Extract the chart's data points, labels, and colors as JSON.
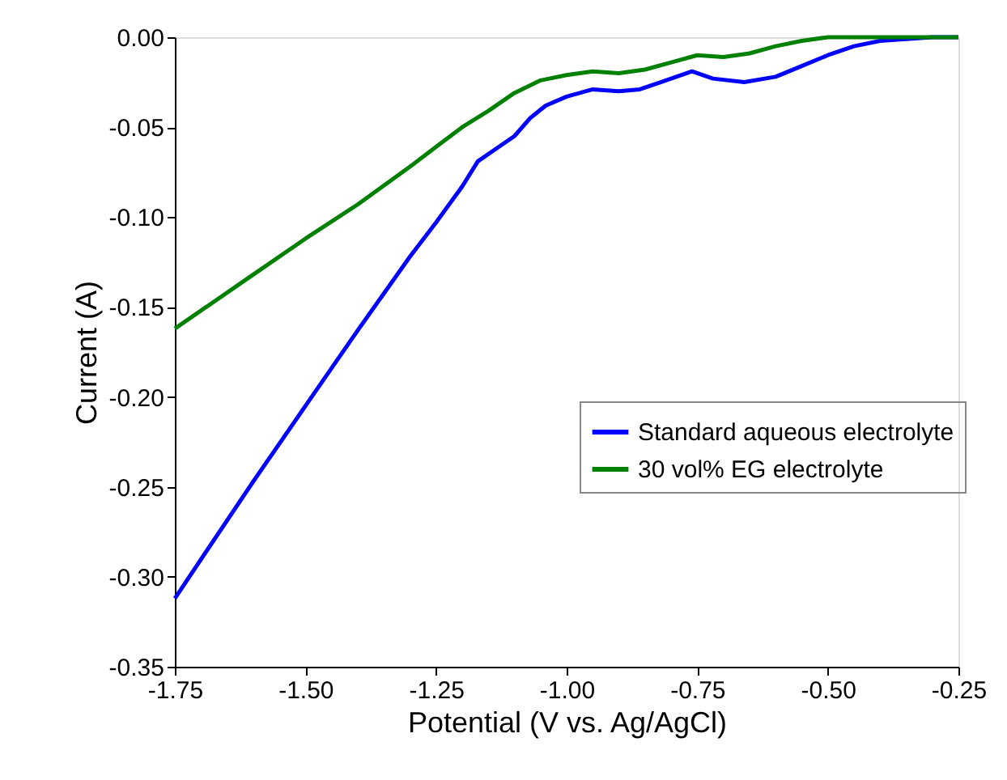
{
  "chart_data": {
    "type": "line",
    "xlabel": "Potential (V vs. Ag/AgCl)",
    "ylabel": "Current (A)",
    "xlim": [
      -1.75,
      -0.25
    ],
    "ylim": [
      -0.35,
      0.0
    ],
    "xticks": [
      {
        "value": -1.75,
        "label": "-1.75"
      },
      {
        "value": -1.5,
        "label": "-1.50"
      },
      {
        "value": -1.25,
        "label": "-1.25"
      },
      {
        "value": -1.0,
        "label": "-1.00"
      },
      {
        "value": -0.75,
        "label": "-0.75"
      },
      {
        "value": -0.5,
        "label": "-0.50"
      },
      {
        "value": -0.25,
        "label": "-0.25"
      }
    ],
    "yticks": [
      {
        "value": -0.35,
        "label": "-0.35"
      },
      {
        "value": -0.3,
        "label": "-0.30"
      },
      {
        "value": -0.25,
        "label": "-0.25"
      },
      {
        "value": -0.2,
        "label": "-0.20"
      },
      {
        "value": -0.15,
        "label": "-0.15"
      },
      {
        "value": -0.1,
        "label": "-0.10"
      },
      {
        "value": -0.05,
        "label": "-0.05"
      },
      {
        "value": 0.0,
        "label": "0.00"
      }
    ],
    "grid": false,
    "legend": "right",
    "marker": "none",
    "line_style": "solid",
    "series": [
      {
        "name": "Standard aqueous electrolyte",
        "color": "#0000ff",
        "x": [
          -1.75,
          -1.6,
          -1.5,
          -1.4,
          -1.3,
          -1.25,
          -1.2,
          -1.17,
          -1.14,
          -1.1,
          -1.07,
          -1.04,
          -1.0,
          -0.95,
          -0.9,
          -0.86,
          -0.82,
          -0.76,
          -0.72,
          -0.66,
          -0.6,
          -0.55,
          -0.5,
          -0.45,
          -0.4,
          -0.35,
          -0.3,
          -0.25
        ],
        "values": [
          -0.312,
          -0.247,
          -0.205,
          -0.163,
          -0.122,
          -0.103,
          -0.083,
          -0.069,
          -0.063,
          -0.055,
          -0.045,
          -0.038,
          -0.033,
          -0.029,
          -0.03,
          -0.029,
          -0.025,
          -0.019,
          -0.023,
          -0.025,
          -0.022,
          -0.016,
          -0.01,
          -0.005,
          -0.002,
          -0.001,
          0.0,
          0.0
        ]
      },
      {
        "name": "30 vol% EG electrolyte",
        "color": "#008000",
        "x": [
          -1.75,
          -1.6,
          -1.5,
          -1.4,
          -1.3,
          -1.25,
          -1.2,
          -1.15,
          -1.1,
          -1.05,
          -1.0,
          -0.95,
          -0.9,
          -0.85,
          -0.8,
          -0.75,
          -0.7,
          -0.65,
          -0.6,
          -0.55,
          -0.5,
          -0.4,
          -0.25
        ],
        "values": [
          -0.162,
          -0.132,
          -0.112,
          -0.093,
          -0.072,
          -0.061,
          -0.05,
          -0.041,
          -0.031,
          -0.024,
          -0.021,
          -0.019,
          -0.02,
          -0.018,
          -0.014,
          -0.01,
          -0.011,
          -0.009,
          -0.005,
          -0.002,
          0.0,
          0.0,
          0.0
        ]
      }
    ]
  }
}
